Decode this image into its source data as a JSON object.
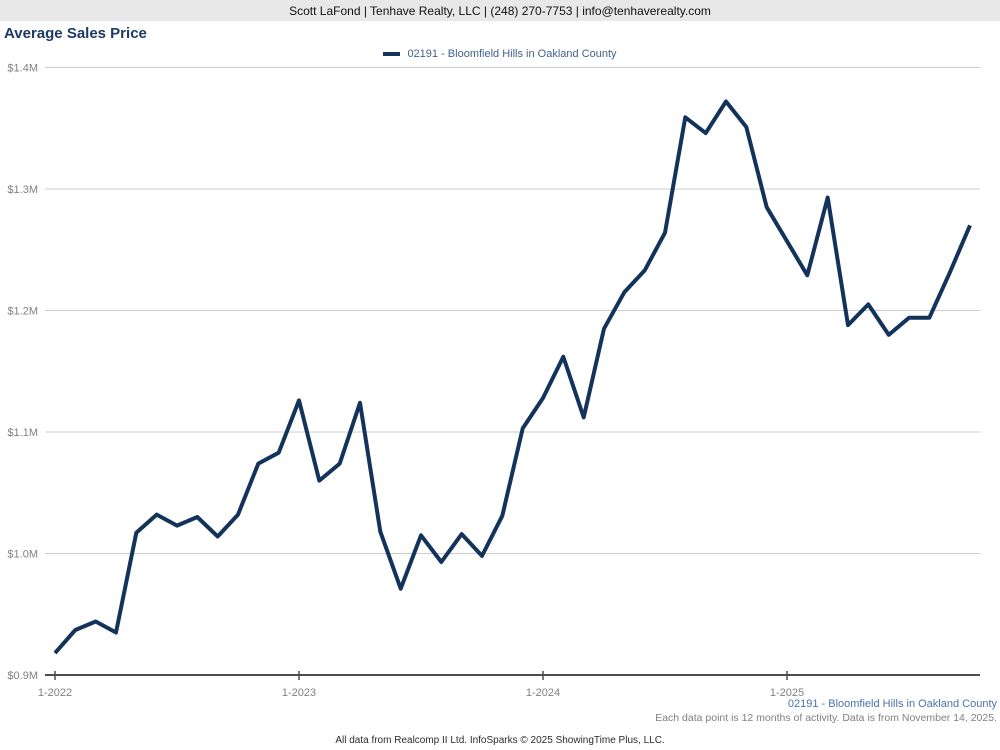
{
  "header": {
    "contact_line": "Scott LaFond | Tenhave Realty, LLC | (248) 270-7753 | info@tenhaverealty.com"
  },
  "title": "Average Sales Price",
  "legend": {
    "series_label": "02191 - Bloomfield Hills in Oakland County",
    "swatch_color": "#14335b"
  },
  "chart_data": {
    "type": "line",
    "title": "Average Sales Price",
    "x_months": [
      "1-2022",
      "2-2022",
      "3-2022",
      "4-2022",
      "5-2022",
      "6-2022",
      "7-2022",
      "8-2022",
      "9-2022",
      "10-2022",
      "11-2022",
      "12-2022",
      "1-2023",
      "2-2023",
      "3-2023",
      "4-2023",
      "5-2023",
      "6-2023",
      "7-2023",
      "8-2023",
      "9-2023",
      "10-2023",
      "11-2023",
      "12-2023",
      "1-2024",
      "2-2024",
      "3-2024",
      "4-2024",
      "5-2024",
      "6-2024",
      "7-2024",
      "8-2024",
      "9-2024",
      "10-2024",
      "11-2024",
      "12-2024",
      "1-2025",
      "2-2025",
      "3-2025",
      "4-2025",
      "5-2025",
      "6-2025",
      "7-2025",
      "8-2025",
      "9-2025",
      "10-2025"
    ],
    "series": [
      {
        "name": "02191 - Bloomfield Hills in Oakland County",
        "color": "#14335b",
        "values_millions": [
          0.918,
          0.937,
          0.944,
          0.935,
          1.017,
          1.032,
          1.023,
          1.03,
          1.014,
          1.032,
          1.074,
          1.083,
          1.126,
          1.06,
          1.074,
          1.124,
          1.018,
          0.971,
          1.015,
          0.993,
          1.016,
          0.998,
          1.031,
          1.103,
          1.128,
          1.162,
          1.112,
          1.185,
          1.215,
          1.233,
          1.264,
          1.359,
          1.346,
          1.372,
          1.351,
          1.285,
          1.257,
          1.229,
          1.293,
          1.188,
          1.205,
          1.18,
          1.194,
          1.194,
          1.231,
          1.27
        ]
      }
    ],
    "x_tick_labels": [
      "1-2022",
      "1-2023",
      "1-2024",
      "1-2025"
    ],
    "x_tick_month_indices": [
      0,
      12,
      24,
      36
    ],
    "y_tick_labels": [
      "$0.9M",
      "$1.0M",
      "$1.1M",
      "$1.2M",
      "$1.3M",
      "$1.4M"
    ],
    "y_tick_values": [
      0.9,
      1.0,
      1.1,
      1.2,
      1.3,
      1.4
    ],
    "ylim": [
      0.9,
      1.4
    ],
    "grid": "horizontal",
    "legend_position": "top-center"
  },
  "footnotes": {
    "series_note": "02191 - Bloomfield Hills in Oakland County",
    "data_note": "Each data point is 12 months of activity. Data is from November 14, 2025.",
    "attribution": "All data from Realcomp II Ltd. InfoSparks © 2025 ShowingTime Plus, LLC."
  },
  "colors": {
    "line": "#14335b",
    "title_text": "#1c3a64",
    "legend_text": "#44618f",
    "footnote_blue": "#4a73ad",
    "axis_label_gray": "#808080",
    "gridline_gray": "#cccccc",
    "axis_line_gray": "#4d4d4d",
    "header_bg": "#e8e8e8"
  }
}
